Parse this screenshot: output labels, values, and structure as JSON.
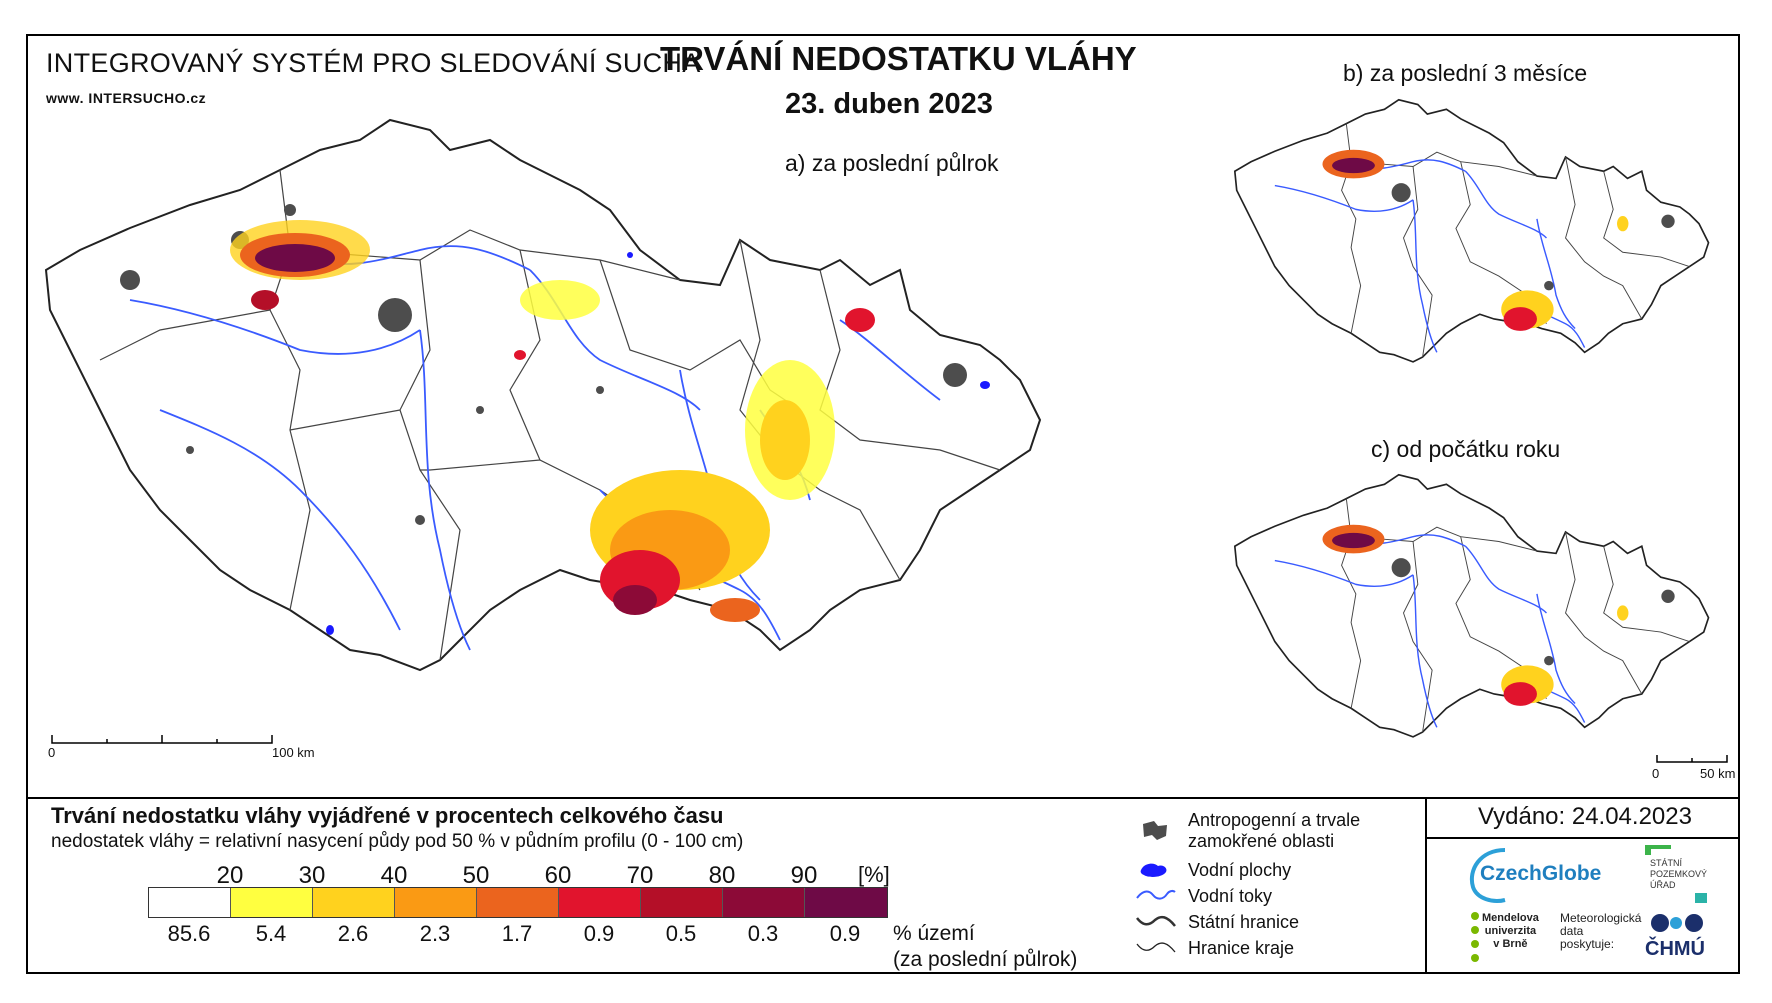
{
  "header": {
    "system_title": "INTEGROVANÝ SYSTÉM PRO SLEDOVÁNÍ SUCHA",
    "website": "www. INTERSUCHO.cz",
    "main_title": "TRVÁNÍ NEDOSTATKU VLÁHY",
    "date": "23. duben 2023"
  },
  "maps": {
    "a_label": "a) za poslední půlrok",
    "b_label": "b) za poslední 3 měsíce",
    "c_label": "c) od počátku roku",
    "scale_main": {
      "zero": "0",
      "end": "100 km"
    },
    "scale_small": {
      "zero": "0",
      "end": "50 km"
    }
  },
  "legend": {
    "title": "Trvání nedostatku vláhy vyjádřené v procentech celkového času",
    "subtitle": "nedostatek vláhy = relativní nasycení půdy pod 50 % v půdním profilu (0 - 100 cm)",
    "unit": "[%]",
    "thresholds": [
      "20",
      "30",
      "40",
      "50",
      "60",
      "70",
      "80",
      "90"
    ],
    "colors": [
      "#ffffff",
      "#ffff40",
      "#ffd21e",
      "#fa9a14",
      "#eb641e",
      "#e1142d",
      "#b40f28",
      "#8c0a37",
      "#6e0a46"
    ],
    "percent_area": [
      "85.6",
      "5.4",
      "2.6",
      "2.3",
      "1.7",
      "0.9",
      "0.5",
      "0.3",
      "0.9"
    ],
    "percent_area_label": "% území\n(za poslední půlrok)"
  },
  "symbols": {
    "anthropogenic": "Antropogenní a trvale\nzamokřené oblasti",
    "water_bodies": "Vodní plochy",
    "rivers": "Vodní toky",
    "state_border": "Státní hranice",
    "region_border": "Hranice kraje",
    "colors": {
      "anthropogenic": "#4d4d4d",
      "water": "#1a1aff",
      "river": "#3a5bff"
    }
  },
  "footer": {
    "issued": "Vydáno: 24.04.2023",
    "logos": {
      "czechglobe": "CzechGlobe",
      "spu": "STÁTNÍ\nPOZEMKOVÝ\nÚŘAD",
      "mendel": "Mendelova\nuniverzita\nv Brně",
      "meteo": "Meteorologická\ndata\nposkytuje:",
      "chmu": "ČHMÚ"
    }
  }
}
